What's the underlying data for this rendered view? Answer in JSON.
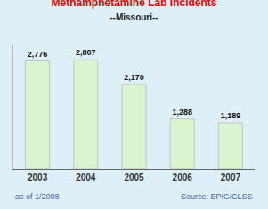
{
  "chart_data": {
    "type": "bar",
    "title": "Methamphetamine Lab Incidents",
    "subtitle": "--Missouri--",
    "categories": [
      "2003",
      "2004",
      "2005",
      "2006",
      "2007"
    ],
    "values": [
      2776,
      2807,
      2170,
      1288,
      1189
    ],
    "value_labels": [
      "2,776",
      "2,807",
      "2,170",
      "1,288",
      "1,189"
    ],
    "data_labels": true,
    "color": "#d8f5d0",
    "ylim": [
      0,
      3200
    ],
    "grid": false,
    "tick_labels": "x",
    "annotations": [
      "as of 1/2008",
      "Source: EPIC/CLSS"
    ]
  }
}
